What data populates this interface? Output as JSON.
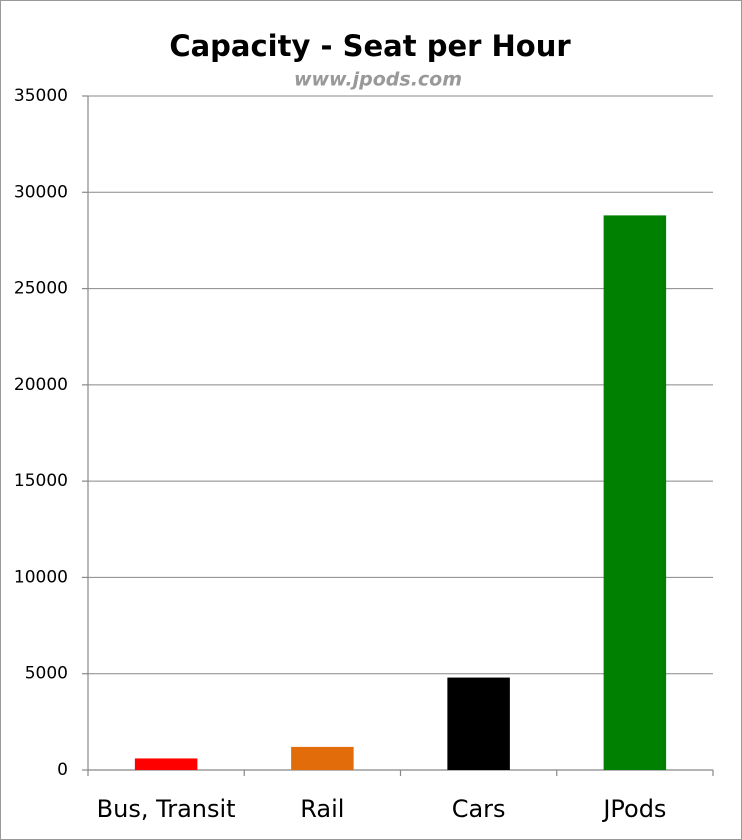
{
  "chart_data": {
    "type": "bar",
    "title": "Capacity - Seat per Hour",
    "subtitle": "www.jpods.com",
    "categories": [
      "Bus, Transit",
      "Rail",
      "Cars",
      "JPods"
    ],
    "values": [
      600,
      1200,
      4800,
      28800
    ],
    "colors": [
      "#ff0000",
      "#e36c0a",
      "#000000",
      "#008000"
    ],
    "ylim": [
      0,
      35000
    ],
    "yticks": [
      0,
      5000,
      10000,
      15000,
      20000,
      25000,
      30000,
      35000
    ],
    "grid": true
  }
}
